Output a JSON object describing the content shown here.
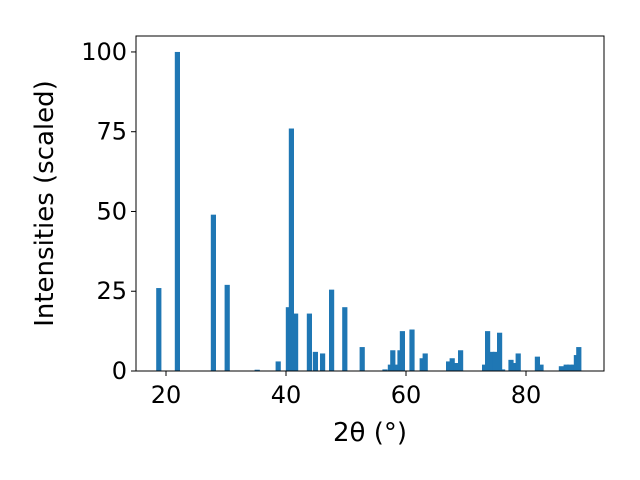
{
  "chart_data": {
    "type": "bar",
    "xlabel": "2θ (°)",
    "ylabel": "Intensities (scaled)",
    "xlim": [
      15,
      93
    ],
    "ylim": [
      0,
      105
    ],
    "xticks": [
      20,
      40,
      60,
      80
    ],
    "yticks": [
      0,
      25,
      50,
      75,
      100
    ],
    "grid": false,
    "bar_color": "#1f77b4",
    "x": [
      18.8,
      21.9,
      27.9,
      30.2,
      35.2,
      38.7,
      40.4,
      40.9,
      41.6,
      43.9,
      44.9,
      46.1,
      47.6,
      49.8,
      52.7,
      56.5,
      57.4,
      57.8,
      58.4,
      59.0,
      59.4,
      61.0,
      62.7,
      63.2,
      67.1,
      67.7,
      68.4,
      69.1,
      73.1,
      73.6,
      74.3,
      74.9,
      75.6,
      76.1,
      77.5,
      78.1,
      78.7,
      81.9,
      82.5,
      85.9,
      86.7,
      87.3,
      88.0,
      88.4,
      88.8
    ],
    "values": [
      26,
      100,
      49,
      27,
      0.4,
      3,
      20,
      76,
      18,
      18,
      6,
      5.5,
      25.5,
      20,
      7.5,
      0.5,
      2,
      6.5,
      2,
      6.5,
      12.5,
      13,
      4,
      5.5,
      3,
      4,
      2.5,
      6.5,
      2,
      12.5,
      6,
      6,
      12,
      0.5,
      3.5,
      2.5,
      5.5,
      4.5,
      2,
      1.5,
      2,
      2,
      2,
      5,
      7.5
    ]
  }
}
